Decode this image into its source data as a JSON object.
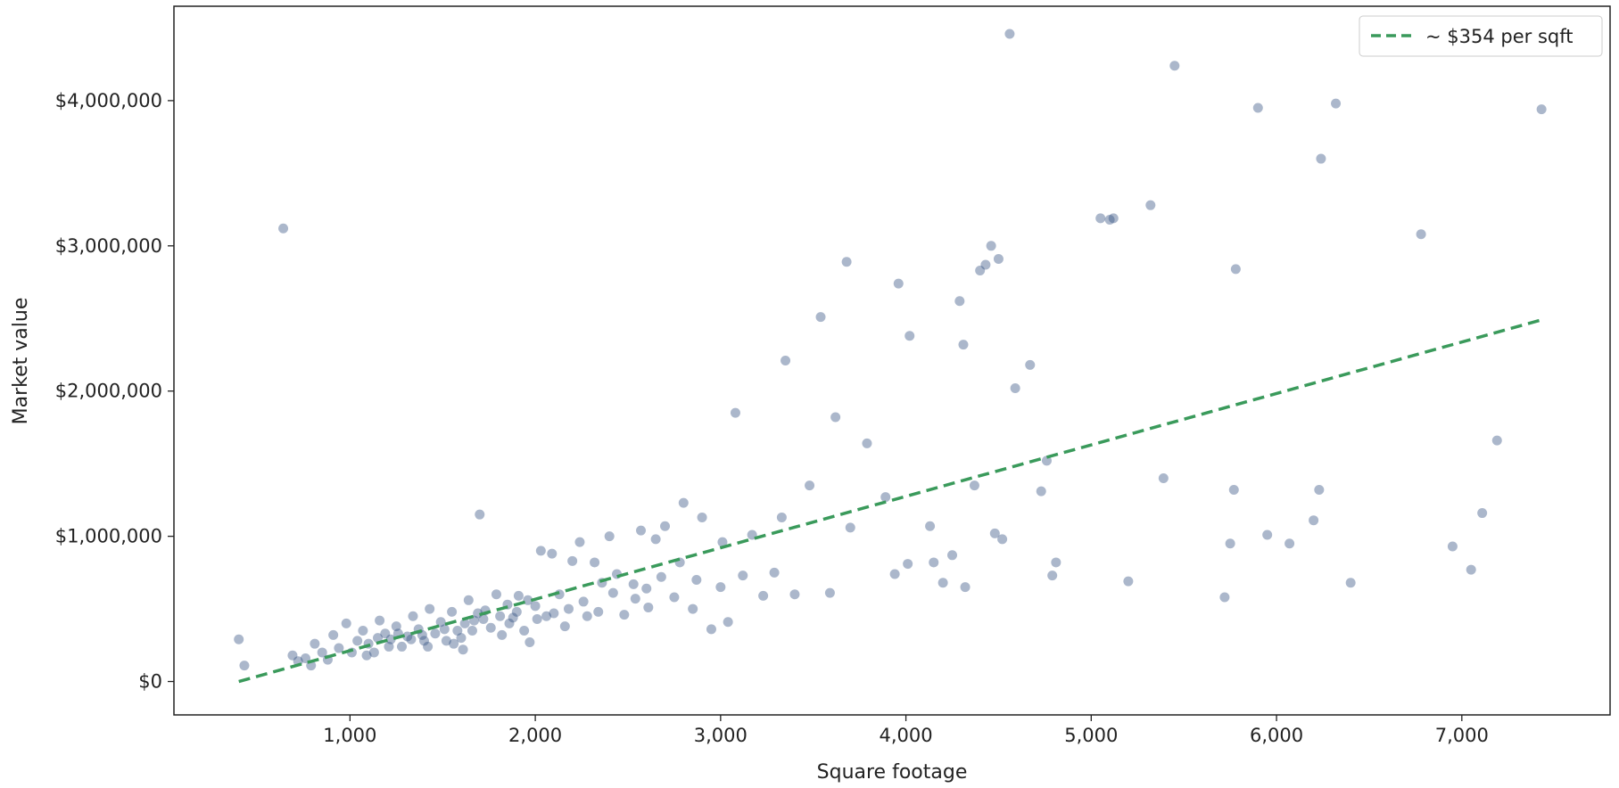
{
  "chart_data": {
    "type": "scatter",
    "title": "",
    "xlabel": "Square footage",
    "ylabel": "Market value",
    "xlim": [
      50,
      7800
    ],
    "ylim": [
      -230000,
      4650000
    ],
    "x_ticks": [
      1000,
      2000,
      3000,
      4000,
      5000,
      6000,
      7000
    ],
    "x_tick_labels": [
      "1,000",
      "2,000",
      "3,000",
      "4,000",
      "5,000",
      "6,000",
      "7,000"
    ],
    "y_ticks": [
      0,
      1000000,
      2000000,
      3000000,
      4000000
    ],
    "y_tick_labels": [
      "$0",
      "$1,000,000",
      "$2,000,000",
      "$3,000,000",
      "$4,000,000"
    ],
    "grid": false,
    "legend": {
      "placement": "top-right",
      "entries": [
        "~ $354 per sqft"
      ]
    },
    "series": [
      {
        "type": "scatter",
        "color": "#2c4a7e",
        "opacity": 0.4,
        "points": [
          [
            400,
            290000
          ],
          [
            430,
            110000
          ],
          [
            640,
            3120000
          ],
          [
            690,
            180000
          ],
          [
            720,
            140000
          ],
          [
            760,
            160000
          ],
          [
            790,
            110000
          ],
          [
            810,
            260000
          ],
          [
            850,
            200000
          ],
          [
            880,
            150000
          ],
          [
            910,
            320000
          ],
          [
            940,
            230000
          ],
          [
            980,
            400000
          ],
          [
            1010,
            200000
          ],
          [
            1040,
            280000
          ],
          [
            1070,
            350000
          ],
          [
            1100,
            260000
          ],
          [
            1130,
            200000
          ],
          [
            1160,
            420000
          ],
          [
            1190,
            330000
          ],
          [
            1220,
            290000
          ],
          [
            1250,
            380000
          ],
          [
            1280,
            240000
          ],
          [
            1310,
            310000
          ],
          [
            1340,
            450000
          ],
          [
            1370,
            360000
          ],
          [
            1400,
            280000
          ],
          [
            1430,
            500000
          ],
          [
            1460,
            330000
          ],
          [
            1490,
            410000
          ],
          [
            1520,
            280000
          ],
          [
            1550,
            480000
          ],
          [
            1580,
            350000
          ],
          [
            1610,
            220000
          ],
          [
            1640,
            560000
          ],
          [
            1670,
            420000
          ],
          [
            1700,
            1150000
          ],
          [
            1730,
            490000
          ],
          [
            1760,
            370000
          ],
          [
            1790,
            600000
          ],
          [
            1820,
            320000
          ],
          [
            1850,
            530000
          ],
          [
            1880,
            440000
          ],
          [
            1910,
            590000
          ],
          [
            1940,
            350000
          ],
          [
            1970,
            270000
          ],
          [
            2000,
            520000
          ],
          [
            2030,
            900000
          ],
          [
            2060,
            450000
          ],
          [
            2090,
            880000
          ],
          [
            2130,
            600000
          ],
          [
            2160,
            380000
          ],
          [
            2200,
            830000
          ],
          [
            2240,
            960000
          ],
          [
            2280,
            450000
          ],
          [
            2320,
            820000
          ],
          [
            2360,
            680000
          ],
          [
            2400,
            1000000
          ],
          [
            2440,
            740000
          ],
          [
            2480,
            460000
          ],
          [
            2530,
            670000
          ],
          [
            2570,
            1040000
          ],
          [
            2610,
            510000
          ],
          [
            2650,
            980000
          ],
          [
            2700,
            1070000
          ],
          [
            2750,
            580000
          ],
          [
            2800,
            1230000
          ],
          [
            2850,
            500000
          ],
          [
            2900,
            1130000
          ],
          [
            2950,
            360000
          ],
          [
            3000,
            650000
          ],
          [
            3040,
            410000
          ],
          [
            3080,
            1850000
          ],
          [
            3120,
            730000
          ],
          [
            3170,
            1010000
          ],
          [
            3230,
            590000
          ],
          [
            3290,
            750000
          ],
          [
            3330,
            1130000
          ],
          [
            3350,
            2210000
          ],
          [
            3400,
            600000
          ],
          [
            3480,
            1350000
          ],
          [
            3540,
            2510000
          ],
          [
            3590,
            610000
          ],
          [
            3620,
            1820000
          ],
          [
            3680,
            2890000
          ],
          [
            3700,
            1060000
          ],
          [
            3790,
            1640000
          ],
          [
            3890,
            1270000
          ],
          [
            3940,
            740000
          ],
          [
            3960,
            2740000
          ],
          [
            4010,
            810000
          ],
          [
            4020,
            2380000
          ],
          [
            4130,
            1070000
          ],
          [
            4150,
            820000
          ],
          [
            4200,
            680000
          ],
          [
            4250,
            870000
          ],
          [
            4290,
            2620000
          ],
          [
            4310,
            2320000
          ],
          [
            4320,
            650000
          ],
          [
            4370,
            1350000
          ],
          [
            4400,
            2830000
          ],
          [
            4430,
            2870000
          ],
          [
            4460,
            3000000
          ],
          [
            4480,
            1020000
          ],
          [
            4500,
            2910000
          ],
          [
            4520,
            980000
          ],
          [
            4560,
            4460000
          ],
          [
            4590,
            2020000
          ],
          [
            4670,
            2180000
          ],
          [
            4730,
            1310000
          ],
          [
            4760,
            1520000
          ],
          [
            4790,
            730000
          ],
          [
            4810,
            820000
          ],
          [
            5050,
            3190000
          ],
          [
            5100,
            3180000
          ],
          [
            5120,
            3190000
          ],
          [
            5200,
            690000
          ],
          [
            5320,
            3280000
          ],
          [
            5390,
            1400000
          ],
          [
            5450,
            4240000
          ],
          [
            5720,
            580000
          ],
          [
            5750,
            950000
          ],
          [
            5770,
            1320000
          ],
          [
            5780,
            2840000
          ],
          [
            5900,
            3950000
          ],
          [
            5950,
            1010000
          ],
          [
            6070,
            950000
          ],
          [
            6200,
            1110000
          ],
          [
            6230,
            1320000
          ],
          [
            6240,
            3600000
          ],
          [
            6320,
            3980000
          ],
          [
            6400,
            680000
          ],
          [
            6780,
            3080000
          ],
          [
            6950,
            930000
          ],
          [
            7050,
            770000
          ],
          [
            7110,
            1160000
          ],
          [
            7190,
            1660000
          ],
          [
            7430,
            3940000
          ],
          [
            1090,
            180000
          ],
          [
            1150,
            300000
          ],
          [
            1210,
            240000
          ],
          [
            1260,
            330000
          ],
          [
            1330,
            290000
          ],
          [
            1390,
            320000
          ],
          [
            1420,
            240000
          ],
          [
            1510,
            360000
          ],
          [
            1560,
            260000
          ],
          [
            1600,
            300000
          ],
          [
            1620,
            400000
          ],
          [
            1660,
            350000
          ],
          [
            1690,
            470000
          ],
          [
            1720,
            430000
          ],
          [
            1810,
            450000
          ],
          [
            1860,
            400000
          ],
          [
            1900,
            480000
          ],
          [
            1960,
            560000
          ],
          [
            2010,
            430000
          ],
          [
            2100,
            470000
          ],
          [
            2180,
            500000
          ],
          [
            2260,
            550000
          ],
          [
            2340,
            480000
          ],
          [
            2420,
            610000
          ],
          [
            2540,
            570000
          ],
          [
            2600,
            640000
          ],
          [
            2680,
            720000
          ],
          [
            2780,
            820000
          ],
          [
            2870,
            700000
          ],
          [
            3010,
            960000
          ]
        ]
      },
      {
        "type": "line",
        "name": "~ $354 per sqft",
        "color": "#3a9a5b",
        "dashed": true,
        "points": [
          [
            400,
            0
          ],
          [
            7430,
            2490000
          ]
        ]
      }
    ]
  }
}
